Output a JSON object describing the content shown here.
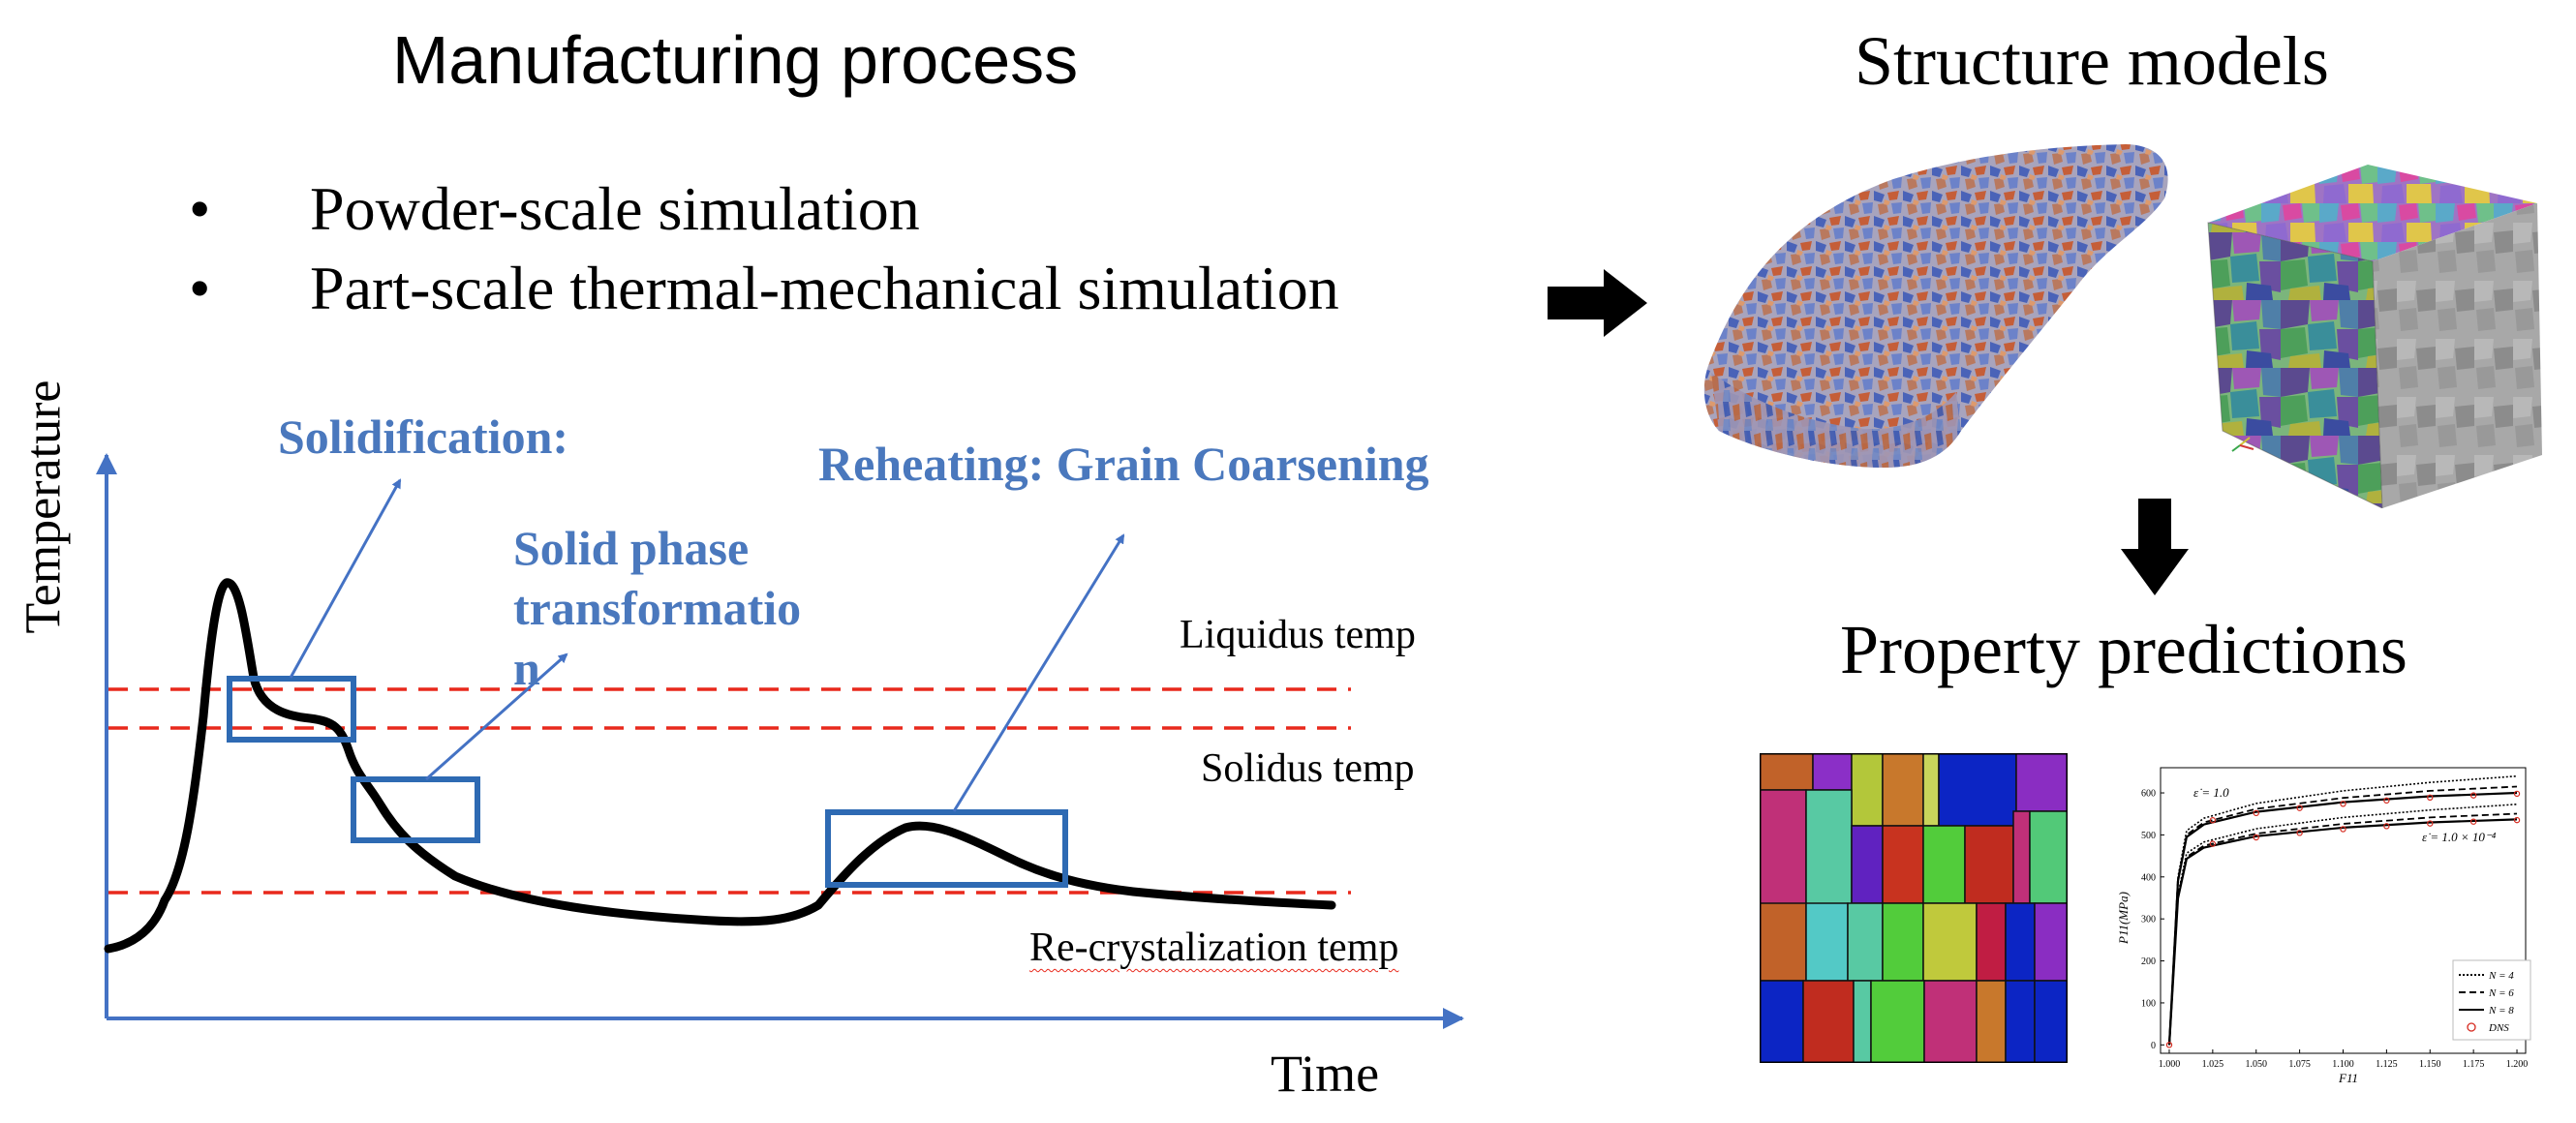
{
  "left": {
    "title": "Manufacturing process",
    "bullets": [
      {
        "symbol": "•",
        "text": "Powder-scale simulation"
      },
      {
        "symbol": "•",
        "text": "Part-scale thermal-mechanical simulation"
      }
    ],
    "diagram": {
      "y_axis_label": "Temperature",
      "x_axis_label": "Time",
      "annotations": {
        "solidification": "Solidification:",
        "solid_phase": [
          "Solid phase",
          "transformatio",
          "n"
        ],
        "reheating": "Reheating: Grain Coarsening"
      },
      "thresholds": {
        "liquidus": "Liquidus temp",
        "solidus": "Solidus temp",
        "recrystal": "Re-crystalization temp"
      },
      "colors": {
        "curve": "#000000",
        "axis": "#4472c4",
        "dashed": "#e8291c",
        "annotation": "#4a78bd",
        "box": "#2e6ab3"
      }
    }
  },
  "right": {
    "structure_title": "Structure models",
    "property_title": "Property predictions",
    "plot": {
      "ylabel": "P11(MPa)",
      "xlabel": "F11",
      "xticks": [
        "1.000",
        "1.025",
        "1.050",
        "1.075",
        "1.100",
        "1.125",
        "1.150",
        "1.175",
        "1.200"
      ],
      "yticks": [
        "0",
        "100",
        "200",
        "300",
        "400",
        "500",
        "600"
      ],
      "annotation_high": "ε̇ = 1.0",
      "annotation_low": "ε̇ = 1.0 × 10⁻⁴",
      "legend": [
        "N = 4",
        "N = 6",
        "N = 8",
        "DNS"
      ]
    }
  },
  "chart_data": {
    "type": "line",
    "xlabel": "F11",
    "ylabel": "P11(MPa)",
    "xlim": [
      0.995,
      1.205
    ],
    "ylim": [
      -20,
      660
    ],
    "series": [
      {
        "name": "N = 4",
        "x": [
          1.0,
          1.005,
          1.01,
          1.02,
          1.05,
          1.1,
          1.15,
          1.2
        ],
        "values": [
          0,
          400,
          510,
          540,
          575,
          605,
          625,
          640
        ]
      },
      {
        "name": "N = 6",
        "x": [
          1.0,
          1.005,
          1.01,
          1.02,
          1.05,
          1.1,
          1.15,
          1.2
        ],
        "values": [
          0,
          395,
          500,
          530,
          562,
          588,
          605,
          615
        ]
      },
      {
        "name": "N = 8",
        "x": [
          1.0,
          1.005,
          1.01,
          1.02,
          1.05,
          1.1,
          1.15,
          1.2
        ],
        "values": [
          0,
          390,
          495,
          525,
          555,
          578,
          592,
          600
        ]
      },
      {
        "name": "DNS",
        "x": [
          1.0,
          1.025,
          1.05,
          1.075,
          1.1,
          1.125,
          1.15,
          1.175,
          1.2
        ],
        "values": [
          0,
          535,
          552,
          564,
          574,
          582,
          589,
          594,
          598
        ]
      }
    ]
  }
}
